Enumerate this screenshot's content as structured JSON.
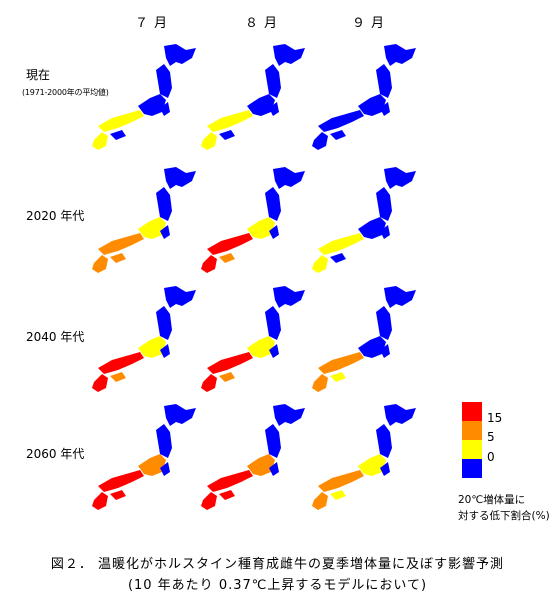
{
  "columns": [
    "７月",
    "８月",
    "９月"
  ],
  "rows": [
    {
      "label": "現在",
      "sublabel": "(1971-2000年の平均値)",
      "levels": [
        [
          1,
          0,
          0,
          0
        ],
        [
          1,
          0,
          0,
          0
        ],
        [
          0,
          0,
          0,
          0
        ]
      ]
    },
    {
      "label": "2020  年代",
      "sublabel": "",
      "levels": [
        [
          2,
          2,
          1,
          0
        ],
        [
          3,
          2,
          1,
          0
        ],
        [
          1,
          0,
          0,
          0
        ]
      ]
    },
    {
      "label": "2040  年代",
      "sublabel": "",
      "levels": [
        [
          3,
          2,
          1,
          0
        ],
        [
          3,
          2,
          1,
          0
        ],
        [
          2,
          1,
          0,
          0
        ]
      ]
    },
    {
      "label": "2060  年代",
      "sublabel": "",
      "levels": [
        [
          3,
          3,
          2,
          0
        ],
        [
          3,
          3,
          2,
          0
        ],
        [
          2,
          1,
          1,
          0
        ]
      ]
    }
  ],
  "legend": {
    "ticks": [
      "15",
      "5",
      "0"
    ],
    "colors": [
      "#ff0000",
      "#ff8c00",
      "#ffff00",
      "#0000ff"
    ],
    "caption_line1": "20℃増体量に",
    "caption_line2": "対する低下割合(%)"
  },
  "caption": {
    "line1": "図２． 温暖化がホルスタイン種育成雌牛の夏季増体量に及ぼす影響予測",
    "line2": "(10 年あたり 0.37℃上昇するモデルにおいて)"
  }
}
